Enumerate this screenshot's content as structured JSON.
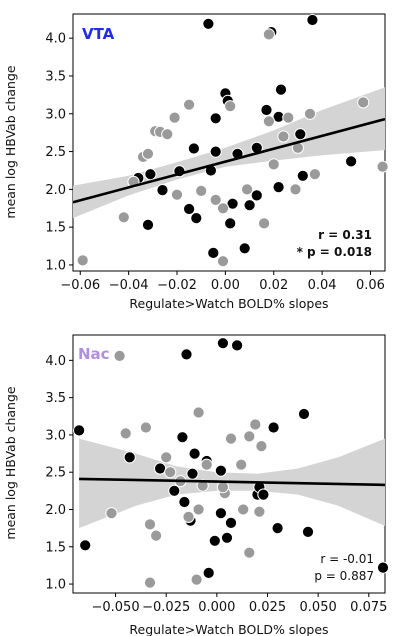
{
  "chart_data": [
    {
      "type": "scatter",
      "title": "VTA",
      "title_color": "#1f2ee8",
      "xlabel": "Regulate>Watch BOLD% slopes",
      "ylabel": "mean log HBVab change",
      "xlim": [
        -0.063,
        0.066
      ],
      "ylim": [
        0.92,
        4.32
      ],
      "xticks": [
        -0.06,
        -0.04,
        -0.02,
        0.0,
        0.02,
        0.04,
        0.06
      ],
      "xtick_labels": [
        "−0.06",
        "−0.04",
        "−0.02",
        "0.00",
        "0.02",
        "0.04",
        "0.06"
      ],
      "yticks": [
        1.0,
        1.5,
        2.0,
        2.5,
        3.0,
        3.5,
        4.0
      ],
      "ytick_labels": [
        "1.0",
        "1.5",
        "2.0",
        "2.5",
        "3.0",
        "3.5",
        "4.0"
      ],
      "annotations": [
        "r = 0.31",
        "* p = 0.018"
      ],
      "regression": {
        "x": [
          -0.063,
          0.066
        ],
        "y": [
          1.83,
          2.93
        ]
      },
      "ci_band": {
        "x": [
          -0.063,
          -0.04,
          -0.02,
          0.0,
          0.02,
          0.04,
          0.066
        ],
        "lower": [
          1.62,
          1.92,
          2.13,
          2.3,
          2.38,
          2.45,
          2.52
        ],
        "upper": [
          2.05,
          2.18,
          2.36,
          2.55,
          2.78,
          3.05,
          3.35
        ]
      },
      "series": [
        {
          "color": "#000000",
          "points": [
            [
              -0.007,
              4.19
            ],
            [
              0.036,
              4.24
            ],
            [
              0.019,
              4.08
            ],
            [
              -0.004,
              2.94
            ],
            [
              0.0,
              3.27
            ],
            [
              0.001,
              3.17
            ],
            [
              0.017,
              3.05
            ],
            [
              0.023,
              3.32
            ],
            [
              0.013,
              2.55
            ],
            [
              0.022,
              2.96
            ],
            [
              0.031,
              2.73
            ],
            [
              -0.013,
              2.54
            ],
            [
              -0.019,
              2.24
            ],
            [
              -0.036,
              2.15
            ],
            [
              -0.031,
              2.2
            ],
            [
              -0.026,
              1.99
            ],
            [
              -0.032,
              1.53
            ],
            [
              -0.006,
              2.25
            ],
            [
              -0.004,
              2.5
            ],
            [
              0.005,
              2.47
            ],
            [
              -0.015,
              1.74
            ],
            [
              -0.012,
              1.62
            ],
            [
              0.003,
              1.81
            ],
            [
              0.002,
              1.55
            ],
            [
              0.01,
              1.79
            ],
            [
              0.013,
              1.92
            ],
            [
              0.022,
              2.03
            ],
            [
              0.032,
              2.18
            ],
            [
              -0.005,
              1.16
            ],
            [
              0.008,
              1.22
            ],
            [
              0.052,
              2.37
            ]
          ]
        },
        {
          "color": "#9a9a9a",
          "points": [
            [
              0.018,
              4.05
            ],
            [
              0.035,
              3.0
            ],
            [
              0.057,
              3.15
            ],
            [
              0.065,
              2.3
            ],
            [
              -0.059,
              1.06
            ],
            [
              -0.042,
              1.63
            ],
            [
              -0.038,
              2.1
            ],
            [
              -0.034,
              2.43
            ],
            [
              -0.032,
              2.47
            ],
            [
              -0.029,
              2.77
            ],
            [
              -0.027,
              2.76
            ],
            [
              -0.024,
              2.73
            ],
            [
              -0.021,
              2.95
            ],
            [
              -0.015,
              3.12
            ],
            [
              0.002,
              3.1
            ],
            [
              0.018,
              2.9
            ],
            [
              0.026,
              2.95
            ],
            [
              0.03,
              2.55
            ],
            [
              -0.02,
              1.93
            ],
            [
              -0.01,
              1.98
            ],
            [
              -0.004,
              1.86
            ],
            [
              -0.001,
              1.75
            ],
            [
              0.009,
              2.0
            ],
            [
              0.016,
              1.55
            ],
            [
              0.024,
              2.7
            ],
            [
              0.029,
              2.0
            ],
            [
              0.037,
              2.2
            ],
            [
              -0.001,
              1.05
            ],
            [
              0.02,
              2.33
            ]
          ]
        }
      ]
    },
    {
      "type": "scatter",
      "title": "Nac",
      "title_color": "#b28ee0",
      "xlabel": "Regulate>Watch BOLD% slopes",
      "ylabel": "mean log HBVab change",
      "xlim": [
        -0.071,
        0.083
      ],
      "ylim": [
        0.88,
        4.34
      ],
      "xticks": [
        -0.05,
        -0.025,
        0.0,
        0.025,
        0.05,
        0.075
      ],
      "xtick_labels": [
        "−0.050",
        "−0.025",
        "0.000",
        "0.025",
        "0.050",
        "0.075"
      ],
      "yticks": [
        1.0,
        1.5,
        2.0,
        2.5,
        3.0,
        3.5,
        4.0
      ],
      "ytick_labels": [
        "1.0",
        "1.5",
        "2.0",
        "2.5",
        "3.0",
        "3.5",
        "4.0"
      ],
      "annotations": [
        "r = -0.01",
        "p = 0.887"
      ],
      "regression": {
        "x": [
          -0.068,
          0.083
        ],
        "y": [
          2.41,
          2.33
        ]
      },
      "ci_band": {
        "x": [
          -0.068,
          -0.04,
          -0.02,
          0.0,
          0.02,
          0.04,
          0.06,
          0.083
        ],
        "lower": [
          1.75,
          2.05,
          2.2,
          2.25,
          2.25,
          2.2,
          2.05,
          1.78
        ],
        "upper": [
          2.95,
          2.75,
          2.58,
          2.5,
          2.48,
          2.55,
          2.7,
          2.95
        ]
      },
      "series": [
        {
          "color": "#000000",
          "points": [
            [
              -0.015,
              4.08
            ],
            [
              0.01,
              4.2
            ],
            [
              0.003,
              4.23
            ],
            [
              0.043,
              3.28
            ],
            [
              0.028,
              3.1
            ],
            [
              -0.068,
              3.06
            ],
            [
              -0.043,
              2.7
            ],
            [
              -0.028,
              2.55
            ],
            [
              -0.017,
              2.97
            ],
            [
              -0.011,
              2.75
            ],
            [
              -0.005,
              2.65
            ],
            [
              -0.012,
              2.48
            ],
            [
              -0.021,
              2.25
            ],
            [
              -0.016,
              2.1
            ],
            [
              -0.013,
              1.85
            ],
            [
              0.002,
              1.95
            ],
            [
              0.007,
              1.82
            ],
            [
              0.002,
              2.52
            ],
            [
              0.02,
              2.2
            ],
            [
              0.021,
              2.3
            ],
            [
              0.023,
              2.2
            ],
            [
              0.03,
              1.75
            ],
            [
              -0.001,
              1.58
            ],
            [
              0.005,
              1.62
            ],
            [
              0.045,
              1.7
            ],
            [
              -0.065,
              1.52
            ],
            [
              -0.004,
              1.15
            ],
            [
              0.082,
              1.22
            ]
          ]
        },
        {
          "color": "#9a9a9a",
          "points": [
            [
              -0.048,
              4.06
            ],
            [
              -0.045,
              3.02
            ],
            [
              -0.035,
              3.1
            ],
            [
              -0.025,
              2.7
            ],
            [
              -0.023,
              2.5
            ],
            [
              -0.009,
              3.3
            ],
            [
              0.019,
              3.14
            ],
            [
              0.016,
              2.98
            ],
            [
              0.022,
              2.85
            ],
            [
              0.012,
              2.6
            ],
            [
              0.007,
              2.95
            ],
            [
              -0.018,
              2.38
            ],
            [
              -0.007,
              2.32
            ],
            [
              -0.005,
              2.6
            ],
            [
              0.004,
              2.22
            ],
            [
              0.013,
              2.0
            ],
            [
              0.021,
              1.97
            ],
            [
              -0.014,
              1.9
            ],
            [
              -0.009,
              2.0
            ],
            [
              -0.052,
              1.95
            ],
            [
              -0.033,
              1.8
            ],
            [
              -0.03,
              1.65
            ],
            [
              0.016,
              1.42
            ],
            [
              -0.01,
              1.06
            ],
            [
              -0.033,
              1.02
            ],
            [
              0.003,
              2.3
            ]
          ]
        }
      ]
    }
  ]
}
